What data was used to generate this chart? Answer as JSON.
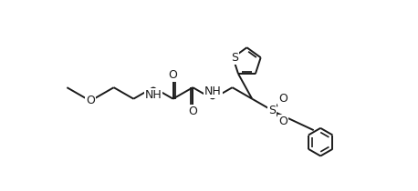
{
  "fig_width": 4.58,
  "fig_height": 2.1,
  "dpi": 100,
  "bg_color": "#ffffff",
  "line_color": "#1a1a1a",
  "lw": 1.4,
  "fs": 9.0,
  "xlim": [
    -0.3,
    9.8
  ],
  "ylim": [
    -2.5,
    3.8
  ]
}
